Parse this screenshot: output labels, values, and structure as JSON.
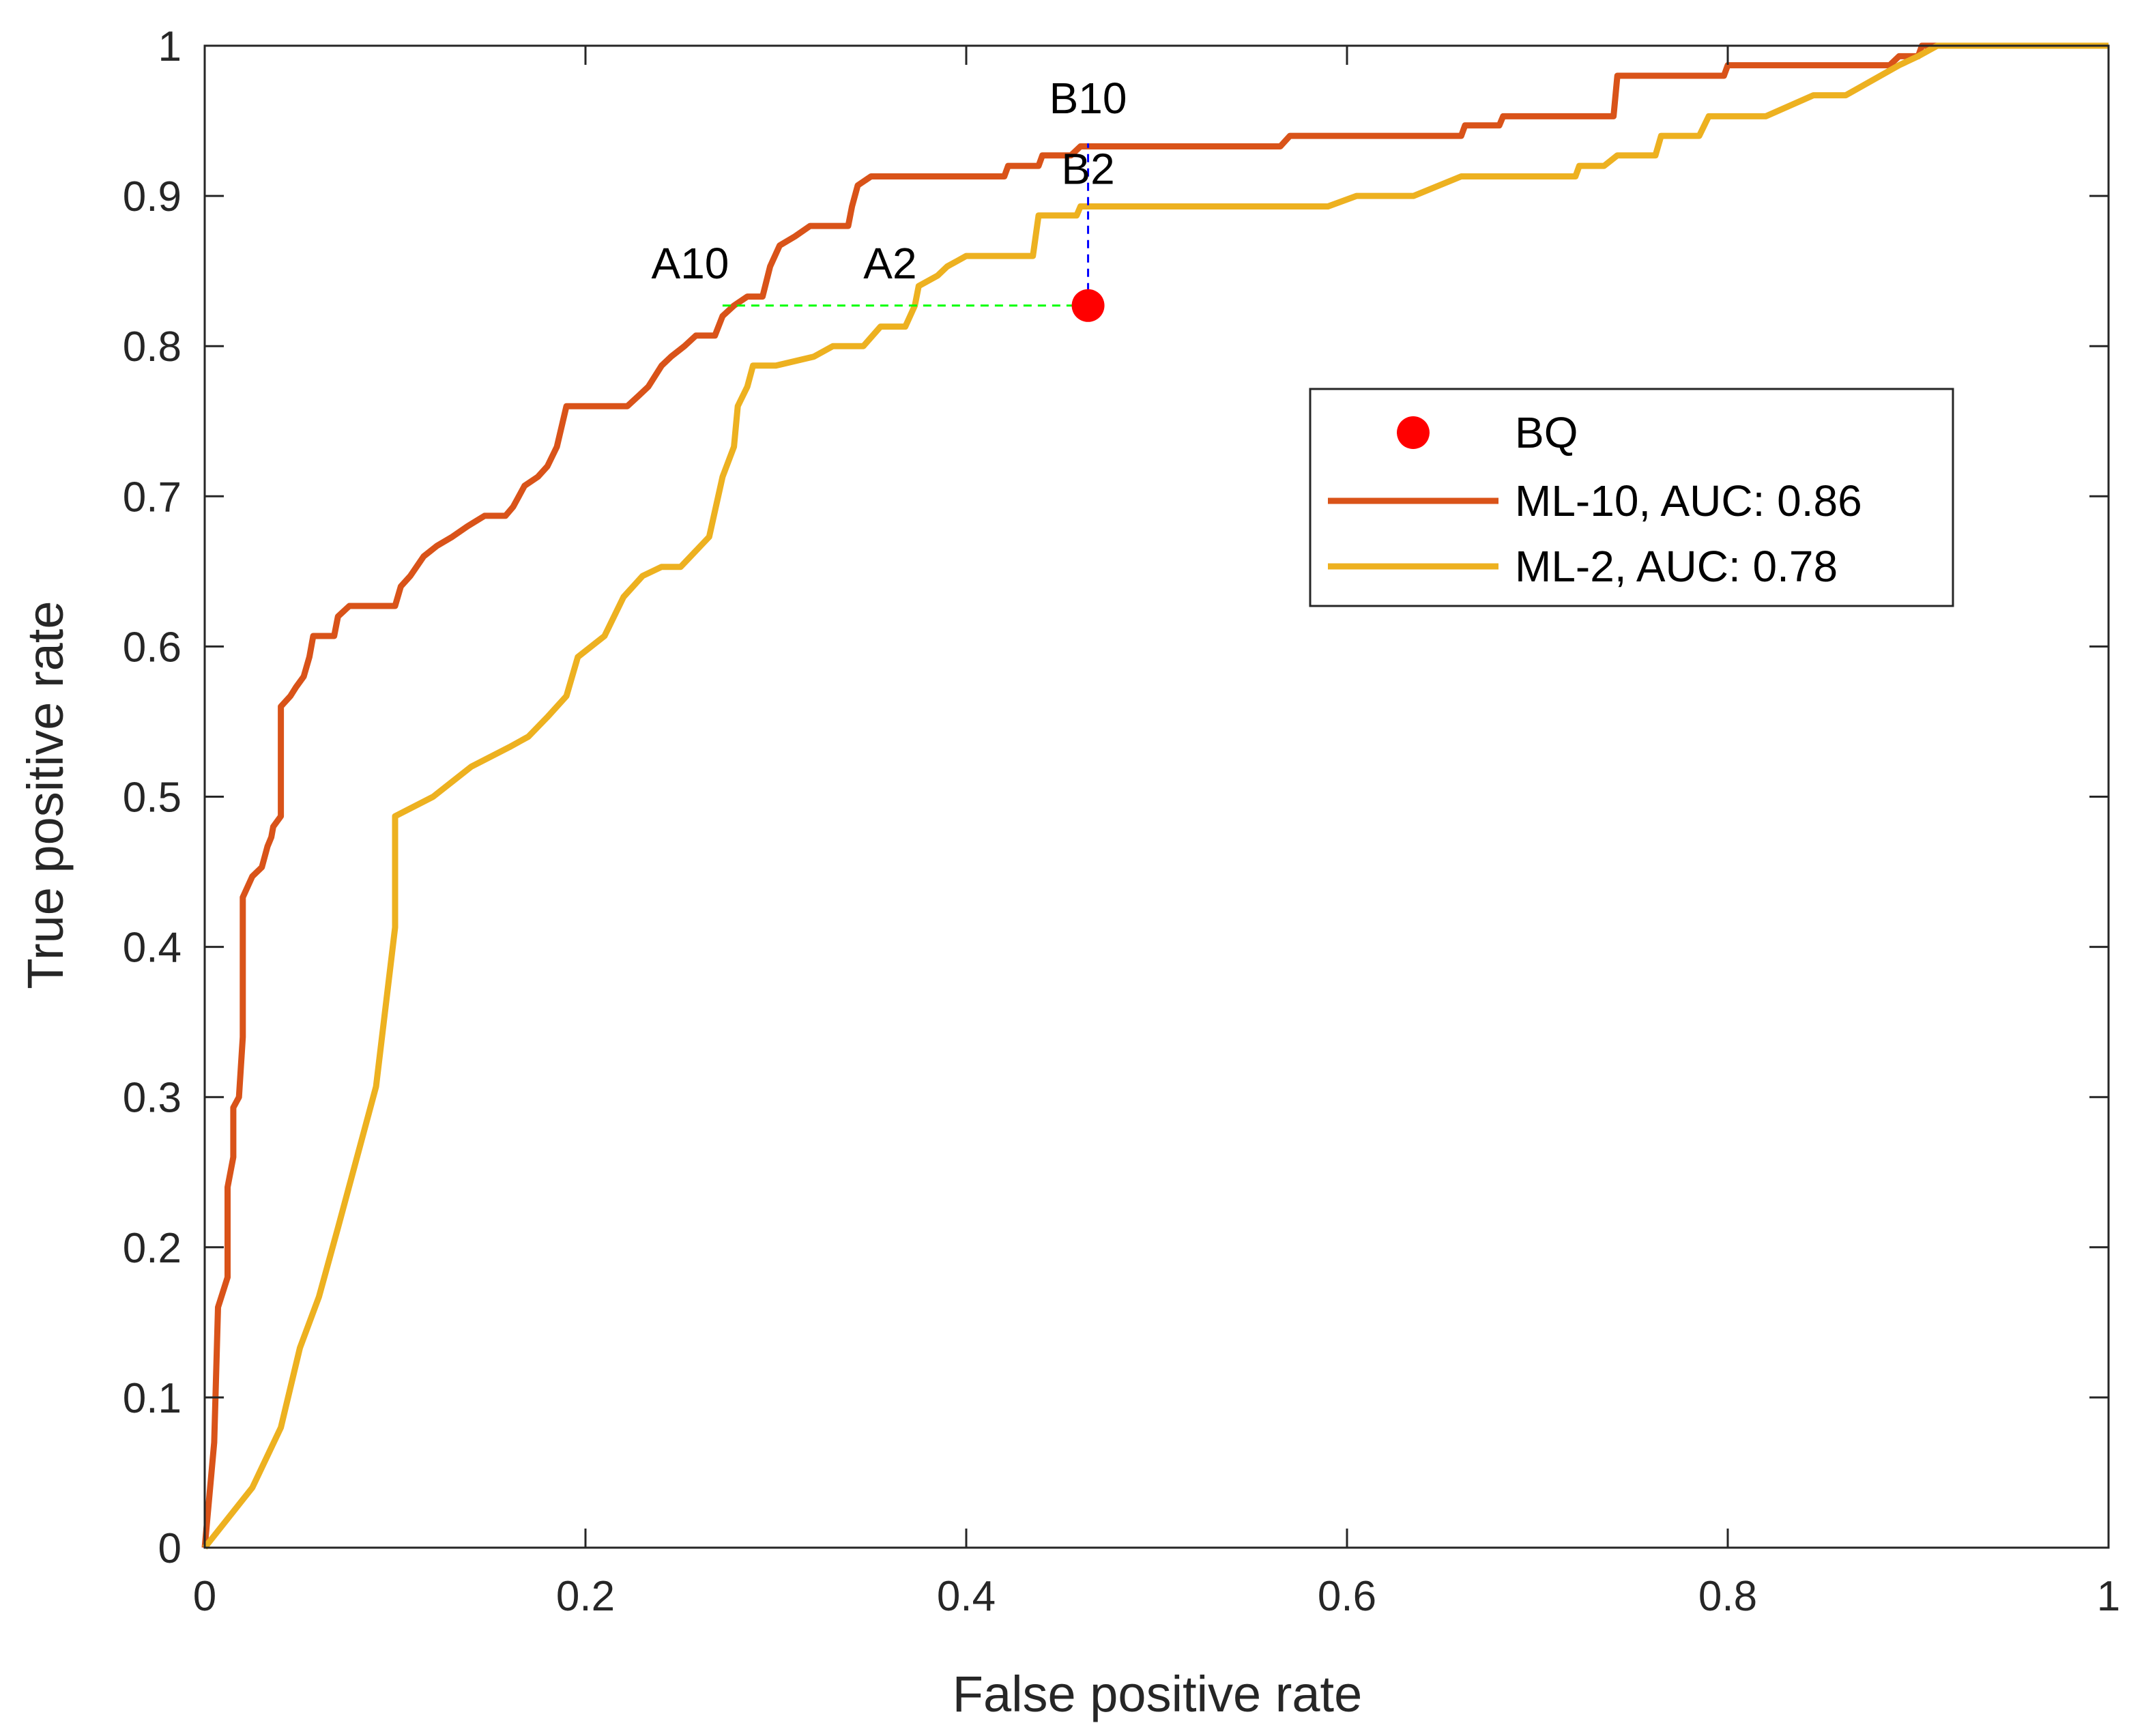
{
  "chart_data": {
    "type": "line",
    "xlabel": "False positive rate",
    "ylabel": "True positive rate",
    "xlim": [
      0,
      1
    ],
    "ylim": [
      0,
      1
    ],
    "xticks": [
      "0",
      "0.2",
      "0.4",
      "0.6",
      "0.8",
      "1"
    ],
    "xtick_values": [
      0,
      0.2,
      0.4,
      0.6,
      0.8,
      1
    ],
    "yticks": [
      "0",
      "0.1",
      "0.2",
      "0.3",
      "0.4",
      "0.5",
      "0.6",
      "0.7",
      "0.8",
      "0.9",
      "1"
    ],
    "ytick_values": [
      0,
      0.1,
      0.2,
      0.3,
      0.4,
      0.5,
      0.6,
      0.7,
      0.8,
      0.9,
      1
    ],
    "grid": false,
    "legend_position": "right-middle",
    "series": [
      {
        "name": "ML-10, AUC: 0.86",
        "color": "#D95319",
        "points": [
          [
            0,
            0
          ],
          [
            0.005,
            0.07
          ],
          [
            0.007,
            0.16
          ],
          [
            0.012,
            0.18
          ],
          [
            0.012,
            0.24
          ],
          [
            0.015,
            0.26
          ],
          [
            0.015,
            0.293
          ],
          [
            0.018,
            0.3
          ],
          [
            0.02,
            0.34
          ],
          [
            0.02,
            0.433
          ],
          [
            0.025,
            0.447
          ],
          [
            0.03,
            0.453
          ],
          [
            0.033,
            0.467
          ],
          [
            0.035,
            0.473
          ],
          [
            0.036,
            0.48
          ],
          [
            0.04,
            0.487
          ],
          [
            0.04,
            0.56
          ],
          [
            0.045,
            0.567
          ],
          [
            0.048,
            0.573
          ],
          [
            0.052,
            0.58
          ],
          [
            0.055,
            0.593
          ],
          [
            0.057,
            0.607
          ],
          [
            0.068,
            0.607
          ],
          [
            0.07,
            0.62
          ],
          [
            0.076,
            0.627
          ],
          [
            0.1,
            0.627
          ],
          [
            0.103,
            0.64
          ],
          [
            0.108,
            0.647
          ],
          [
            0.115,
            0.66
          ],
          [
            0.122,
            0.667
          ],
          [
            0.13,
            0.673
          ],
          [
            0.138,
            0.68
          ],
          [
            0.147,
            0.687
          ],
          [
            0.158,
            0.687
          ],
          [
            0.162,
            0.693
          ],
          [
            0.168,
            0.707
          ],
          [
            0.175,
            0.713
          ],
          [
            0.18,
            0.72
          ],
          [
            0.185,
            0.733
          ],
          [
            0.19,
            0.76
          ],
          [
            0.222,
            0.76
          ],
          [
            0.228,
            0.767
          ],
          [
            0.233,
            0.773
          ],
          [
            0.24,
            0.787
          ],
          [
            0.245,
            0.793
          ],
          [
            0.252,
            0.8
          ],
          [
            0.258,
            0.807
          ],
          [
            0.268,
            0.807
          ],
          [
            0.272,
            0.82
          ],
          [
            0.278,
            0.827
          ],
          [
            0.285,
            0.833
          ],
          [
            0.293,
            0.833
          ],
          [
            0.297,
            0.853
          ],
          [
            0.302,
            0.867
          ],
          [
            0.31,
            0.873
          ],
          [
            0.318,
            0.88
          ],
          [
            0.338,
            0.88
          ],
          [
            0.34,
            0.893
          ],
          [
            0.343,
            0.907
          ],
          [
            0.35,
            0.913
          ],
          [
            0.42,
            0.913
          ],
          [
            0.422,
            0.92
          ],
          [
            0.438,
            0.92
          ],
          [
            0.44,
            0.927
          ],
          [
            0.455,
            0.927
          ],
          [
            0.46,
            0.933
          ],
          [
            0.565,
            0.933
          ],
          [
            0.57,
            0.94
          ],
          [
            0.66,
            0.94
          ],
          [
            0.662,
            0.947
          ],
          [
            0.68,
            0.947
          ],
          [
            0.682,
            0.953
          ],
          [
            0.74,
            0.953
          ],
          [
            0.742,
            0.98
          ],
          [
            0.798,
            0.98
          ],
          [
            0.8,
            0.987
          ],
          [
            0.885,
            0.987
          ],
          [
            0.89,
            0.993
          ],
          [
            0.9,
            0.993
          ],
          [
            0.902,
            1
          ],
          [
            1,
            1
          ]
        ]
      },
      {
        "name": "ML-2, AUC: 0.78",
        "color": "#EDB120",
        "points": [
          [
            0,
            0
          ],
          [
            0.025,
            0.04
          ],
          [
            0.04,
            0.08
          ],
          [
            0.05,
            0.133
          ],
          [
            0.06,
            0.167
          ],
          [
            0.07,
            0.213
          ],
          [
            0.09,
            0.307
          ],
          [
            0.1,
            0.413
          ],
          [
            0.1,
            0.487
          ],
          [
            0.12,
            0.5
          ],
          [
            0.14,
            0.52
          ],
          [
            0.16,
            0.533
          ],
          [
            0.17,
            0.54
          ],
          [
            0.18,
            0.553
          ],
          [
            0.19,
            0.567
          ],
          [
            0.196,
            0.593
          ],
          [
            0.21,
            0.607
          ],
          [
            0.22,
            0.633
          ],
          [
            0.23,
            0.647
          ],
          [
            0.24,
            0.653
          ],
          [
            0.25,
            0.653
          ],
          [
            0.265,
            0.673
          ],
          [
            0.272,
            0.713
          ],
          [
            0.278,
            0.733
          ],
          [
            0.28,
            0.76
          ],
          [
            0.285,
            0.773
          ],
          [
            0.288,
            0.787
          ],
          [
            0.3,
            0.787
          ],
          [
            0.32,
            0.793
          ],
          [
            0.33,
            0.8
          ],
          [
            0.346,
            0.8
          ],
          [
            0.355,
            0.813
          ],
          [
            0.368,
            0.813
          ],
          [
            0.373,
            0.827
          ],
          [
            0.375,
            0.84
          ],
          [
            0.385,
            0.847
          ],
          [
            0.39,
            0.853
          ],
          [
            0.4,
            0.86
          ],
          [
            0.435,
            0.86
          ],
          [
            0.438,
            0.887
          ],
          [
            0.458,
            0.887
          ],
          [
            0.46,
            0.893
          ],
          [
            0.59,
            0.893
          ],
          [
            0.605,
            0.9
          ],
          [
            0.635,
            0.9
          ],
          [
            0.66,
            0.913
          ],
          [
            0.72,
            0.913
          ],
          [
            0.722,
            0.92
          ],
          [
            0.735,
            0.92
          ],
          [
            0.742,
            0.927
          ],
          [
            0.762,
            0.927
          ],
          [
            0.765,
            0.94
          ],
          [
            0.785,
            0.94
          ],
          [
            0.79,
            0.953
          ],
          [
            0.82,
            0.953
          ],
          [
            0.845,
            0.967
          ],
          [
            0.862,
            0.967
          ],
          [
            0.89,
            0.987
          ],
          [
            0.9,
            0.993
          ],
          [
            0.91,
            1
          ],
          [
            1,
            1
          ]
        ]
      }
    ],
    "points": [
      {
        "name": "BQ",
        "x": 0.464,
        "y": 0.827,
        "color": "#FF0000"
      }
    ],
    "reference_lines": [
      {
        "name": "horizontal",
        "from": [
          0.272,
          0.827
        ],
        "to": [
          0.464,
          0.827
        ],
        "color": "#00FF00",
        "dash": true
      },
      {
        "name": "vertical",
        "from": [
          0.464,
          0.827
        ],
        "to": [
          0.464,
          0.935
        ],
        "color": "#0000FF",
        "dash": true
      }
    ],
    "annotations": [
      {
        "text": "A10",
        "x": 0.255,
        "y": 0.845
      },
      {
        "text": "A2",
        "x": 0.36,
        "y": 0.845
      },
      {
        "text": "B10",
        "x": 0.464,
        "y": 0.955
      },
      {
        "text": "B2",
        "x": 0.464,
        "y": 0.908
      }
    ],
    "legend": [
      {
        "label": "BQ",
        "kind": "marker",
        "color": "#FF0000"
      },
      {
        "label": "ML-10, AUC: 0.86",
        "kind": "line",
        "color": "#D95319"
      },
      {
        "label": "ML-2, AUC: 0.78",
        "kind": "line",
        "color": "#EDB120"
      }
    ]
  }
}
